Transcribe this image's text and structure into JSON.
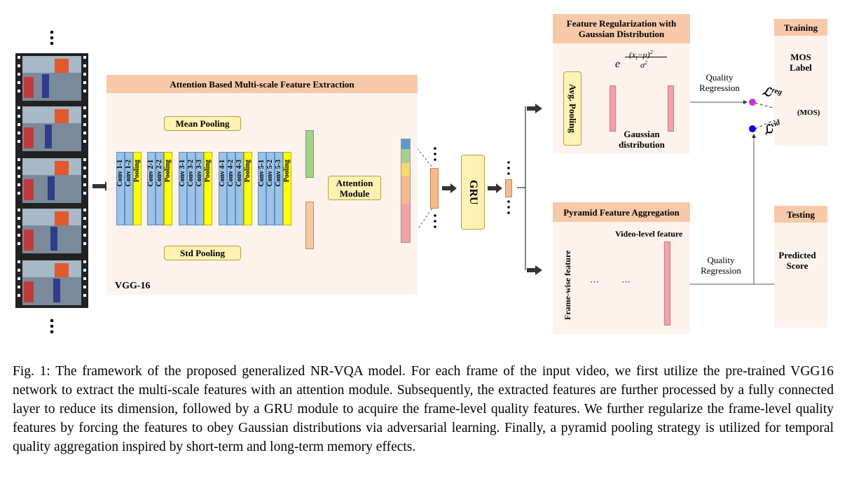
{
  "extraction": {
    "title": "Attention Based  Multi-scale Feature Extraction",
    "backbone": "VGG-16",
    "mean_pooling": "Mean Pooling",
    "std_pooling": "Std Pooling",
    "attention": "Attention Module",
    "gru": "GRU",
    "layers": [
      [
        "Conv 1-1",
        "Conv 1-2",
        "Pooling"
      ],
      [
        "Conv 2-1",
        "Conv 2-2",
        "Pooling"
      ],
      [
        "Conv 3-1",
        "Conv 3-2",
        "Conv 3-3",
        "Pooling"
      ],
      [
        "Conv 4-1",
        "Conv 4-2",
        "Conv 4-3",
        "Pooling"
      ],
      [
        "Conv 5-1",
        "Conv 5-2",
        "Conv 5-3",
        "Pooling"
      ]
    ]
  },
  "regularization": {
    "title": "Feature Regularization with Gaussian Distribution",
    "avg_pooling": "Avg. Pooling",
    "formula_base": "e",
    "formula_numerator": "(x",
    "formula_sub": "i",
    "formula_num_rest": "−μ)",
    "formula_exp": "2",
    "formula_denominator": "σ",
    "formula_den_exp": "2",
    "gaussian": "Gaussian distribution"
  },
  "aggregation": {
    "title": "Pyramid Feature Aggregation",
    "frame_wise": "Frame-wise feature",
    "video_level": "Video-level feature",
    "ellipsis": "···"
  },
  "regression_top": "Quality Regression",
  "regression_bottom": "Quality Regression",
  "training": {
    "title": "Training",
    "mos_label": "MOS Label",
    "loss_reg": "ℒ",
    "loss_reg_sup": "reg",
    "loss_vid": "ℒ",
    "loss_vid_sup": "vid",
    "mos": "(MOS)"
  },
  "testing": {
    "title": "Testing",
    "predicted": "Predicted Score"
  },
  "caption": "Fig. 1: The framework of the proposed generalized NR-VQA model. For each frame of the input video, we first utilize the pre-trained VGG16 network to extract the multi-scale features with an attention module. Subsequently, the extracted features are further processed by a fully connected layer to reduce its dimension, followed by a GRU module to acquire the frame-level quality features. We further regularize the frame-level quality features by forcing the features to obey Gaussian distributions via adversarial learning. Finally, a pyramid pooling strategy is utilized for temporal quality aggregation inspired by short-term and long-term memory effects.",
  "colors": {
    "header": "#f8c9a9",
    "panel": "#fdf3ec",
    "conv": "#9cc2e5",
    "pool": "#ffff00",
    "feature_orange": "#f8b98a",
    "feature_green": "#a9d18e",
    "feature_pink": "#f4a0a8",
    "dot_magenta": "#cc33cc",
    "dot_red": "#ff0000",
    "dot_blue": "#0000ee"
  }
}
